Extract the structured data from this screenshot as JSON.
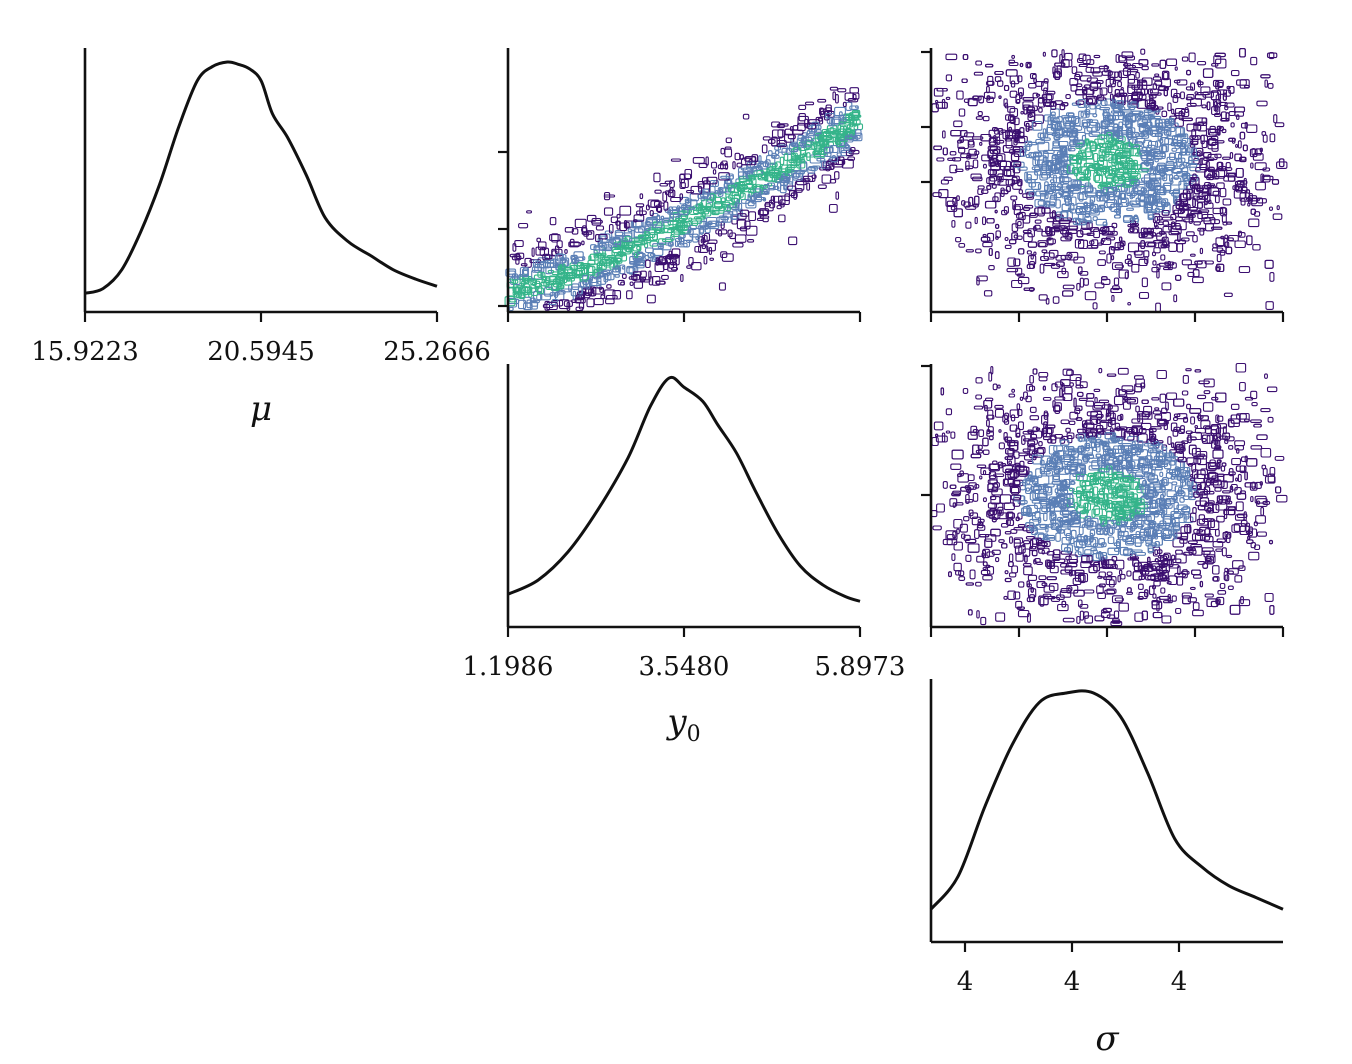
{
  "chart_data": {
    "type": "corner",
    "colors": {
      "contour_outer": "#3b0f70",
      "contour_mid": "#5b7fb6",
      "contour_inner": "#35b48a",
      "line": "#111111"
    },
    "parameters": [
      {
        "key": "mu",
        "axis_label": "μ",
        "tick_labels": [
          "15.9223",
          "20.5945",
          "25.2666"
        ],
        "range": [
          15.9223,
          25.2666
        ]
      },
      {
        "key": "y0",
        "axis_label": "y",
        "axis_label_sub": "0",
        "tick_labels": [
          "1.1986",
          "3.5480",
          "5.8973"
        ],
        "range": [
          1.1986,
          5.8973
        ]
      },
      {
        "key": "sigma",
        "axis_label": "σ",
        "tick_labels": [
          "4",
          "4",
          "4"
        ],
        "range": [
          3.45,
          4.75
        ],
        "tick_values": [
          3.6,
          4.0,
          4.4
        ]
      }
    ],
    "marginals": [
      {
        "param": "mu",
        "x": [
          15.9223,
          16.4,
          16.9,
          17.4,
          17.9,
          18.4,
          18.9,
          19.3,
          19.7,
          20.0,
          20.3,
          20.6,
          20.9,
          21.3,
          21.8,
          22.3,
          22.9,
          23.5,
          24.1,
          24.7,
          25.2666
        ],
        "y": [
          0.02,
          0.04,
          0.12,
          0.28,
          0.48,
          0.72,
          0.92,
          0.98,
          1.0,
          0.99,
          0.97,
          0.92,
          0.78,
          0.68,
          0.52,
          0.34,
          0.24,
          0.18,
          0.12,
          0.08,
          0.05
        ]
      },
      {
        "param": "y0",
        "x": [
          1.1986,
          1.6,
          2.0,
          2.4,
          2.8,
          3.1,
          3.35,
          3.55,
          3.8,
          4.0,
          4.25,
          4.5,
          4.8,
          5.1,
          5.4,
          5.7,
          5.8973
        ],
        "y": [
          0.08,
          0.14,
          0.26,
          0.44,
          0.66,
          0.88,
          1.0,
          0.96,
          0.9,
          0.8,
          0.68,
          0.52,
          0.34,
          0.2,
          0.12,
          0.07,
          0.05
        ]
      },
      {
        "param": "sigma",
        "x": [
          3.45,
          3.55,
          3.65,
          3.75,
          3.85,
          3.95,
          4.05,
          4.15,
          4.25,
          4.35,
          4.45,
          4.55,
          4.65,
          4.75
        ],
        "y": [
          0.08,
          0.22,
          0.52,
          0.78,
          0.96,
          1.0,
          1.0,
          0.9,
          0.66,
          0.38,
          0.26,
          0.18,
          0.13,
          0.08
        ]
      }
    ],
    "pairs": [
      {
        "x_param": "y0",
        "y_param": "mu",
        "correlation": 0.85
      },
      {
        "x_param": "sigma",
        "y_param": "mu",
        "correlation": 0.0
      },
      {
        "x_param": "sigma",
        "y_param": "y0",
        "correlation": 0.0
      }
    ]
  }
}
